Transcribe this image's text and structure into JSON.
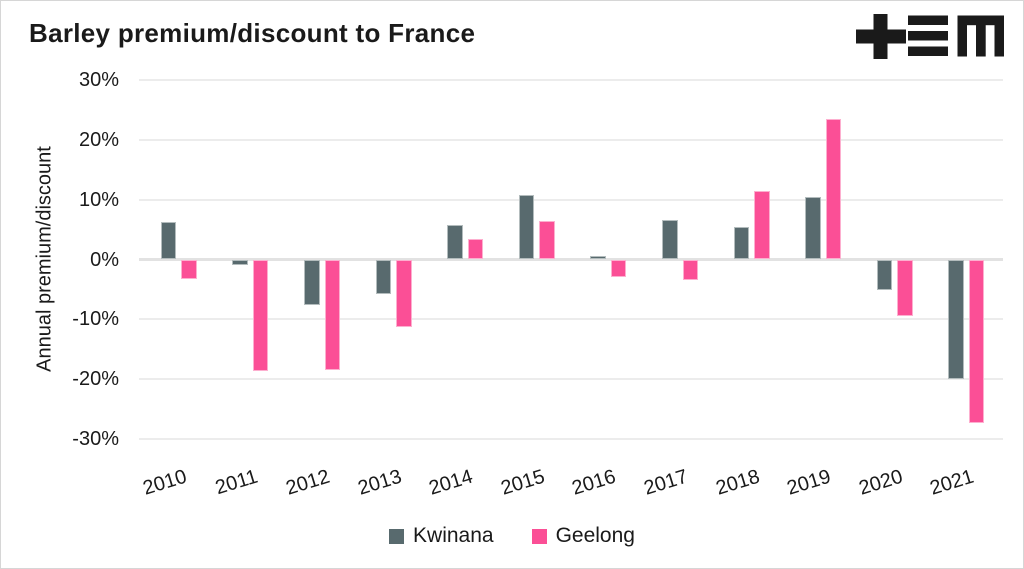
{
  "title": "Barley premium/discount to France",
  "logo": {
    "name": "tem-logo",
    "color": "#1a1a1a"
  },
  "colors": {
    "kwinana": "#586a6e",
    "geelong": "#fb4f96",
    "grid": "#ececec",
    "zero_line": "#e2e2e2",
    "text": "#1a1a1a",
    "background": "#ffffff",
    "border": "#d6d6d6"
  },
  "chart_data": {
    "type": "bar",
    "title": "Barley premium/discount to France",
    "ylabel": "Annual premium/discount",
    "xlabel": "",
    "categories": [
      "2010",
      "2011",
      "2012",
      "2013",
      "2014",
      "2015",
      "2016",
      "2017",
      "2018",
      "2019",
      "2020",
      "2021"
    ],
    "series": [
      {
        "name": "Kwinana",
        "color": "#586a6e",
        "values": [
          6.2,
          -1.0,
          -7.6,
          -5.7,
          5.7,
          10.8,
          0.6,
          6.6,
          5.5,
          10.4,
          -5.1,
          -20.0
        ]
      },
      {
        "name": "Geelong",
        "color": "#fb4f96",
        "values": [
          -3.3,
          -18.7,
          -18.5,
          -11.3,
          3.5,
          6.4,
          -3.0,
          -3.5,
          11.5,
          23.4,
          -9.4,
          -27.3
        ]
      }
    ],
    "ylim": [
      -30,
      30
    ],
    "yticks": [
      30,
      20,
      10,
      0,
      -10,
      -20,
      -30
    ],
    "ytick_labels": [
      "30%",
      "20%",
      "10%",
      "0%",
      "-10%",
      "-20%",
      "-30%"
    ],
    "unit": "%",
    "grid": true,
    "legend_position": "bottom"
  }
}
